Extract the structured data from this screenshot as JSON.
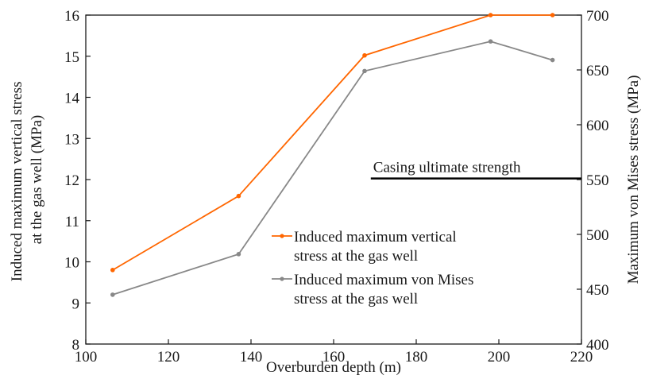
{
  "chart_data": {
    "type": "line",
    "x": [
      106.5,
      137,
      167.5,
      198,
      213
    ],
    "xlabel": "Overburden depth (m)",
    "xlim": [
      100,
      220
    ],
    "xticks": [
      100,
      120,
      140,
      160,
      180,
      200,
      220
    ],
    "ylabel_left": [
      "Induced maximum vertical stress",
      "at the gas well (MPa)"
    ],
    "ylim_left": [
      8,
      16
    ],
    "yticks_left": [
      8,
      9,
      10,
      11,
      12,
      13,
      14,
      15,
      16
    ],
    "ylabel_right": "Maximum von Mises stress (MPa)",
    "ylim_right": [
      400,
      700
    ],
    "yticks_right": [
      400,
      450,
      500,
      550,
      600,
      650,
      700
    ],
    "series": [
      {
        "name": [
          "Induced maximum vertical",
          "stress at the gas well"
        ],
        "axis": "left",
        "color": "#ff6600",
        "values": [
          9.8,
          11.6,
          15.02,
          16.0,
          16.0
        ]
      },
      {
        "name": [
          "Induced maximum von Mises",
          "stress at the gas well"
        ],
        "axis": "right",
        "color": "#888888",
        "values": [
          445,
          482,
          649,
          676,
          659
        ]
      }
    ],
    "reference_line": {
      "label": "Casing ultimate strength",
      "axis": "right",
      "value": 551,
      "x_start": 169
    },
    "legend_position": "lower-right",
    "grid": false
  }
}
